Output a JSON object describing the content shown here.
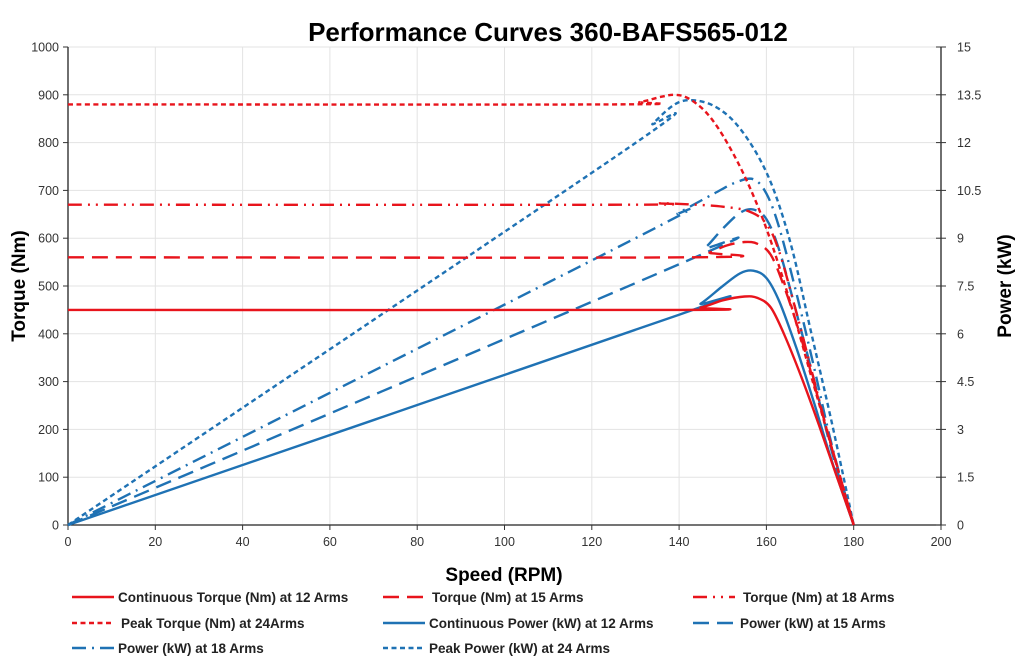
{
  "chart_data": {
    "type": "line",
    "title": "Performance Curves 360-BAFS565-012",
    "xlabel": "Speed (RPM)",
    "ylabel": "Torque (Nm)",
    "y2label": "Power (kW)",
    "xlim": [
      0,
      200
    ],
    "ylim": [
      0,
      1000
    ],
    "y2lim": [
      0,
      15
    ],
    "xticks": [
      "0",
      "20",
      "40",
      "60",
      "80",
      "100",
      "120",
      "140",
      "160",
      "180",
      "200"
    ],
    "yticks": [
      "0",
      "100",
      "200",
      "300",
      "400",
      "500",
      "600",
      "700",
      "800",
      "900",
      "1000"
    ],
    "y2ticks": [
      "0",
      "1.5",
      "3",
      "4.5",
      "6",
      "7.5",
      "9",
      "10.5",
      "12",
      "13.5",
      "15"
    ],
    "grid": true,
    "legend_position": "bottom",
    "colors": {
      "torque": "#e8141c",
      "power": "#1f72b4"
    },
    "series": [
      {
        "name": "Continuous Torque (Nm) at 12 Arms",
        "axis": "left",
        "color": "#e8141c",
        "style": "solid",
        "x": [
          0,
          140,
          145,
          150,
          155,
          158,
          161,
          164,
          168,
          172,
          176,
          180
        ],
        "y": [
          450,
          450,
          455,
          470,
          478,
          475,
          455,
          400,
          310,
          210,
          105,
          0
        ]
      },
      {
        "name": "Torque (Nm) at 15 Arms",
        "axis": "left",
        "color": "#e8141c",
        "style": "dash",
        "x": [
          0,
          143,
          147,
          151,
          155,
          158,
          161,
          164,
          168,
          172,
          176,
          180
        ],
        "y": [
          560,
          560,
          570,
          585,
          592,
          588,
          565,
          500,
          390,
          260,
          130,
          0
        ]
      },
      {
        "name": "Torque (Nm) at 18 Arms",
        "axis": "left",
        "color": "#e8141c",
        "style": "dashdotdot",
        "x": [
          0,
          128,
          135,
          142,
          150,
          156,
          160,
          163,
          167,
          171,
          175,
          180
        ],
        "y": [
          670,
          670,
          673,
          671,
          666,
          656,
          630,
          570,
          440,
          300,
          160,
          0
        ]
      },
      {
        "name": "Peak Torque (Nm) at 24Arms",
        "axis": "left",
        "color": "#e8141c",
        "style": "dot",
        "x": [
          0,
          125,
          131,
          136,
          139,
          142,
          146,
          150,
          155,
          160,
          165,
          170,
          175,
          180
        ],
        "y": [
          880,
          880,
          885,
          896,
          900,
          893,
          865,
          815,
          730,
          620,
          480,
          320,
          160,
          0
        ]
      },
      {
        "name": "Continuous Power (kW) at 12 Arms",
        "axis": "right",
        "color": "#1f72b4",
        "style": "solid",
        "x": [
          0,
          140,
          145,
          150,
          154,
          157,
          160,
          163,
          167,
          171,
          175,
          180
        ],
        "y": [
          0,
          6.6,
          6.95,
          7.5,
          7.9,
          7.98,
          7.75,
          7.0,
          5.5,
          3.8,
          2.0,
          0
        ]
      },
      {
        "name": "Power (kW) at 15 Arms",
        "axis": "right",
        "color": "#1f72b4",
        "style": "dash",
        "x": [
          0,
          142,
          146,
          150,
          154,
          157,
          160,
          163,
          167,
          171,
          175,
          180
        ],
        "y": [
          0,
          8.3,
          8.7,
          9.3,
          9.8,
          9.9,
          9.6,
          8.6,
          6.6,
          4.5,
          2.3,
          0
        ]
      },
      {
        "name": "Power (kW) at 18 Arms",
        "axis": "right",
        "color": "#1f72b4",
        "style": "dashdot",
        "x": [
          0,
          130,
          140,
          148,
          153,
          157,
          160,
          163,
          167,
          171,
          175,
          180
        ],
        "y": [
          0,
          9.0,
          9.8,
          10.4,
          10.75,
          10.85,
          10.4,
          9.3,
          7.2,
          4.9,
          2.5,
          0
        ]
      },
      {
        "name": "Peak Power (kW) at 24 Arms",
        "axis": "right",
        "color": "#1f72b4",
        "style": "dot",
        "x": [
          0,
          128,
          134,
          139,
          143,
          148,
          153,
          158,
          162,
          166,
          170,
          175,
          180
        ],
        "y": [
          0,
          11.8,
          12.6,
          13.2,
          13.33,
          13.15,
          12.6,
          11.6,
          10.4,
          8.6,
          6.2,
          3.2,
          0
        ]
      }
    ]
  }
}
